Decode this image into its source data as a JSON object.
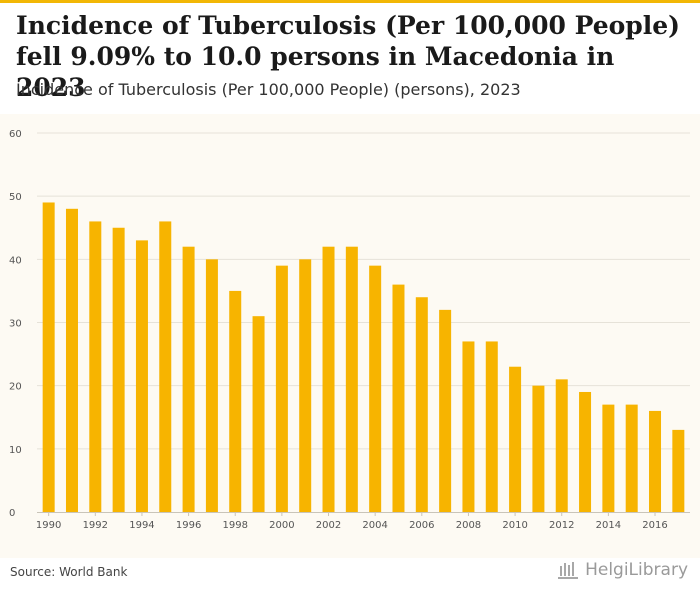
{
  "header": {
    "title": "Incidence of Tuberculosis (Per 100,000 People) fell 9.09% to 10.0 persons in Macedonia in 2023",
    "subtitle": "Incidence of Tuberculosis (Per 100,000 People) (persons), 2023"
  },
  "footer": {
    "source": "Source: World Bank",
    "brand": "HelgiLibrary"
  },
  "colors": {
    "bar": "#f7b400",
    "grid": "#e6e2d8",
    "accent": "#f2b705"
  },
  "chart_data": {
    "type": "bar",
    "title": "Incidence of Tuberculosis (Per 100,000 People) (persons), 2023",
    "xlabel": "",
    "ylabel": "",
    "ylim": [
      0,
      60
    ],
    "yticks": [
      0,
      10,
      20,
      30,
      40,
      50,
      60
    ],
    "grid": true,
    "categories": [
      "1990",
      "1991",
      "1992",
      "1993",
      "1994",
      "1995",
      "1996",
      "1997",
      "1998",
      "1999",
      "2000",
      "2001",
      "2002",
      "2003",
      "2004",
      "2005",
      "2006",
      "2007",
      "2008",
      "2009",
      "2010",
      "2011",
      "2012",
      "2013",
      "2014",
      "2015",
      "2016",
      "2017"
    ],
    "xtick_labels": [
      "1990",
      "1992",
      "1994",
      "1996",
      "1998",
      "2000",
      "2002",
      "2004",
      "2006",
      "2008",
      "2010",
      "2012",
      "2014",
      "2016"
    ],
    "values": [
      49,
      48,
      46,
      45,
      43,
      46,
      42,
      40,
      35,
      31,
      39,
      40,
      42,
      42,
      39,
      36,
      34,
      32,
      27,
      27,
      23,
      20,
      21,
      19,
      17,
      17,
      16,
      13
    ]
  }
}
